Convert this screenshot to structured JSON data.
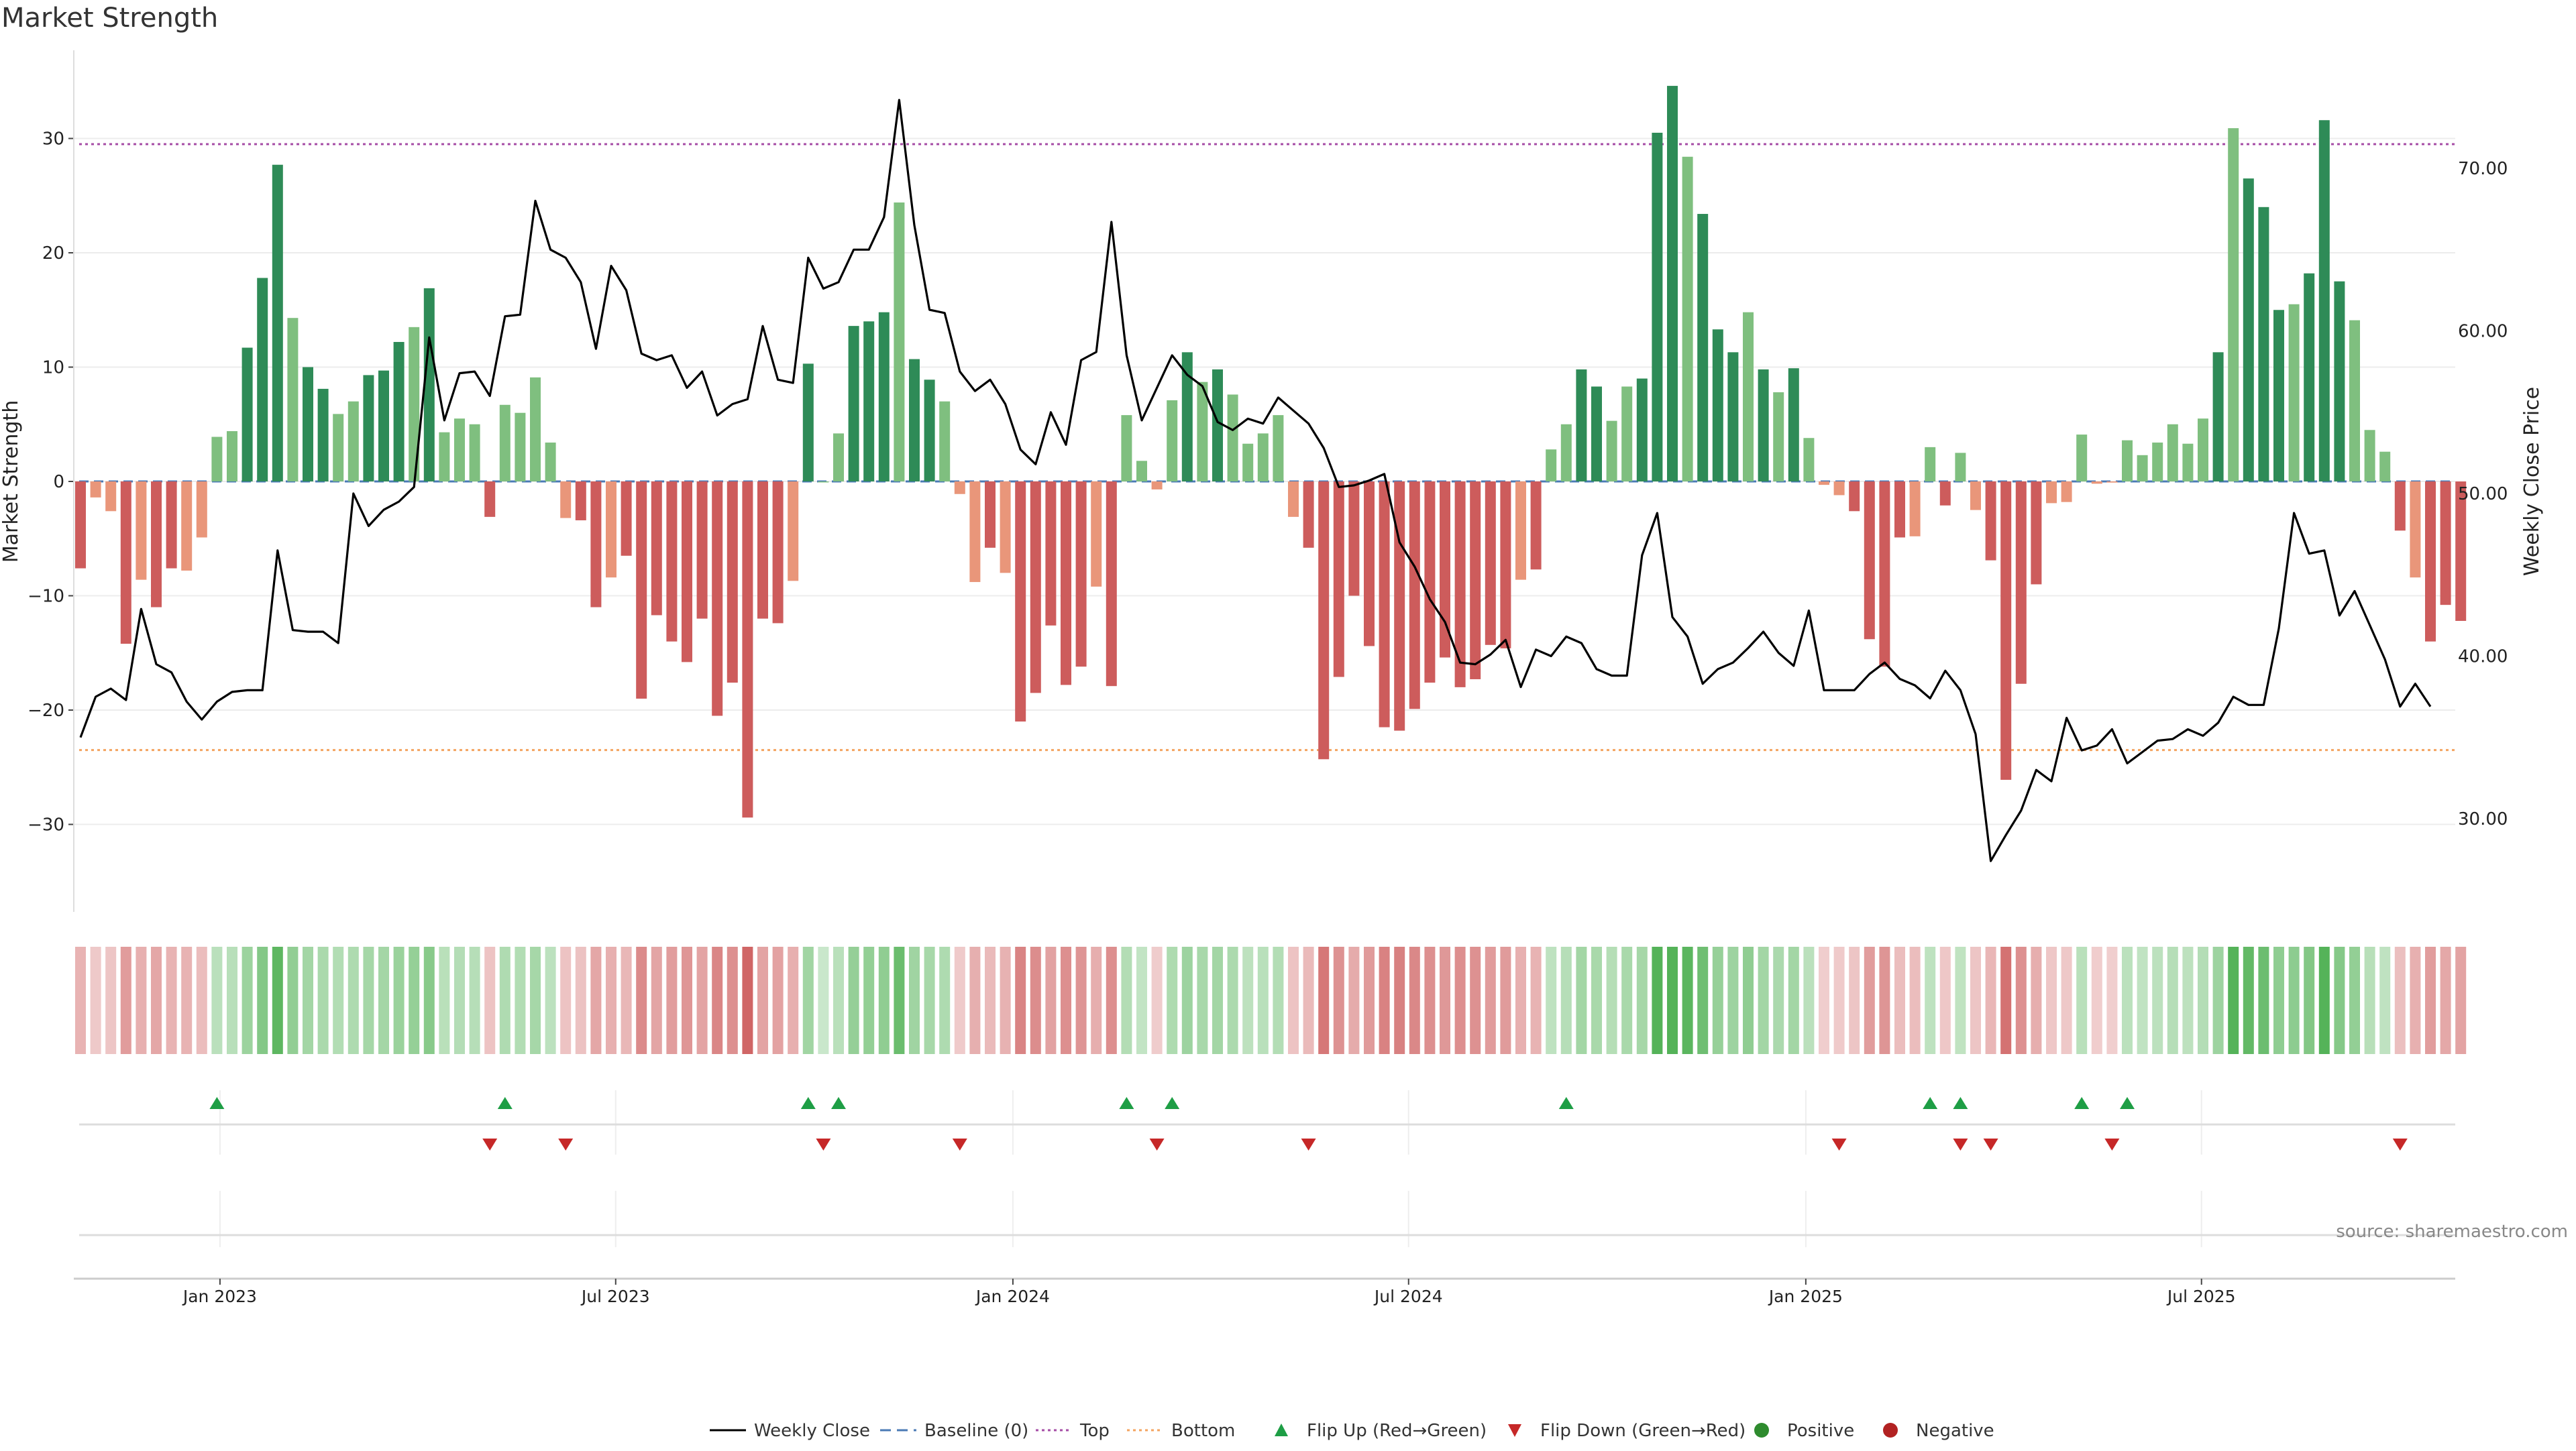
{
  "chart_data": {
    "type": "bar",
    "title": "Market Strength",
    "ylabel": "Market Strength",
    "y2label": "Weekly Close Price",
    "ylim": [
      -37.5,
      37.5
    ],
    "y2lim": [
      25.2,
      75.8
    ],
    "yticks": [
      "30",
      "20",
      "10",
      "0",
      "−10",
      "−20",
      "−30"
    ],
    "yticks_values": [
      30,
      20,
      10,
      0,
      -10,
      -20,
      -30
    ],
    "y2ticks": [
      "70.00",
      "60.00",
      "50.00",
      "40.00",
      "30.00"
    ],
    "y2ticks_values": [
      70,
      60,
      50,
      40,
      30
    ],
    "xticks": [
      "Jan 2023",
      "Jul 2023",
      "Jan 2024",
      "Jul 2024",
      "Jan 2025",
      "Jul 2025"
    ],
    "xticks_week_index": [
      9.2,
      35.3,
      61.5,
      87.6,
      113.8,
      139.9
    ],
    "reference_lines": {
      "top": 29.5,
      "bottom": -23.5,
      "baseline": 0
    },
    "colors": {
      "pos_strong": "#2e8b57",
      "pos_light": "#7fbf7f",
      "neg_strong": "#cd5c5c",
      "neg_light": "#e9967a",
      "close_line": "#000000",
      "top_line": "#a64ca6",
      "bottom_line": "#f4a460",
      "baseline": "#4a7ab5",
      "flip_up": "#1e9e45",
      "flip_down": "#c62828",
      "positive_dot": "#2e8b2e",
      "negative_dot": "#b22222"
    },
    "series": [
      {
        "name": "Market Strength",
        "values": [
          -7.6,
          -1.4,
          -2.6,
          -14.2,
          -8.6,
          -11,
          -7.6,
          -7.8,
          -4.9,
          3.9,
          4.4,
          11.7,
          17.8,
          27.7,
          14.3,
          10,
          8.1,
          5.9,
          7,
          9.3,
          9.7,
          12.2,
          13.5,
          16.9,
          4.3,
          5.5,
          5,
          -3.1,
          6.7,
          6,
          9.1,
          3.4,
          -3.2,
          -3.4,
          -11,
          -8.4,
          -6.5,
          -19,
          -11.7,
          -14,
          -15.8,
          -12,
          -20.5,
          -17.6,
          -29.4,
          -12,
          -12.4,
          -8.7,
          10.3,
          0,
          4.2,
          13.6,
          14,
          14.8,
          24.4,
          10.7,
          8.9,
          7,
          -1.1,
          -8.8,
          -5.8,
          -8,
          -21,
          -18.5,
          -12.6,
          -17.8,
          -16.2,
          -9.2,
          -17.9,
          5.8,
          1.8,
          -0.7,
          7.1,
          11.3,
          8.7,
          9.8,
          7.6,
          3.3,
          4.2,
          5.8,
          -3.1,
          -5.8,
          -24.3,
          -17.1,
          -10,
          -14.4,
          -21.5,
          -21.8,
          -19.9,
          -17.6,
          -15.4,
          -18,
          -17.3,
          -14.3,
          -14.6,
          -8.6,
          -7.7,
          2.8,
          5,
          9.8,
          8.3,
          5.3,
          8.3,
          9,
          30.5,
          34.6,
          28.4,
          23.4,
          13.3,
          11.3,
          14.8,
          9.8,
          7.8,
          9.9,
          3.8,
          -0.3,
          -1.2,
          -2.6,
          -13.8,
          -16.2,
          -4.9,
          -4.8,
          3,
          -2.1,
          2.5,
          -2.5,
          -6.9,
          -26.1,
          -17.7,
          -9,
          -1.9,
          -1.8,
          4.1,
          -0.2,
          -0.1,
          3.6,
          2.3,
          3.4,
          5,
          3.3,
          5.5,
          11.3,
          30.9,
          26.5,
          24,
          15,
          15.5,
          18.2,
          31.6,
          17.5,
          14.1,
          4.5,
          2.6,
          -4.3,
          -8.4,
          -14,
          -10.8,
          -12.2
        ]
      },
      {
        "name": "Weekly Close",
        "values": [
          35,
          37.5,
          38,
          37.3,
          42.9,
          39.5,
          39,
          37.2,
          36.1,
          37.2,
          37.8,
          37.9,
          37.9,
          46.5,
          41.6,
          41.5,
          41.5,
          40.8,
          50,
          48,
          49,
          49.5,
          50.4,
          59.6,
          54.5,
          57.4,
          57.5,
          56,
          60.9,
          61,
          68,
          65,
          64.5,
          63,
          58.9,
          64,
          62.5,
          58.6,
          58.2,
          58.5,
          56.5,
          57.5,
          54.8,
          55.5,
          55.8,
          60.3,
          57,
          56.8,
          64.5,
          62.6,
          63,
          65,
          65,
          67,
          74.2,
          66.5,
          61.3,
          61.1,
          57.5,
          56.3,
          57,
          55.5,
          52.7,
          51.8,
          55,
          53,
          58.2,
          58.7,
          66.7,
          58.5,
          54.5,
          56.5,
          58.5,
          57.3,
          56.6,
          54.4,
          53.9,
          54.6,
          54.3,
          55.9,
          55.1,
          54.3,
          52.8,
          50.4,
          50.5,
          50.8,
          51.2,
          47,
          45.5,
          43.5,
          42.1,
          39.6,
          39.5,
          40.1,
          41,
          38.1,
          40.4,
          40,
          41.2,
          40.8,
          39.2,
          38.8,
          38.8,
          46.2,
          48.8,
          42.4,
          41.2,
          38.3,
          39.2,
          39.6,
          40.5,
          41.5,
          40.2,
          39.4,
          42.8,
          37.9,
          37.9,
          37.9,
          38.9,
          39.6,
          38.6,
          38.2,
          37.4,
          39.1,
          37.9,
          35.2,
          27.4,
          29,
          30.5,
          33,
          32.3,
          36.2,
          34.2,
          34.5,
          35.5,
          33.4,
          34.1,
          34.8,
          34.9,
          35.5,
          35.1,
          35.9,
          37.5,
          37,
          37,
          41.7,
          48.8,
          46.3,
          46.5,
          42.5,
          44,
          41.9,
          39.8,
          36.9,
          38.3,
          36.9
        ]
      }
    ],
    "heatmap": {
      "description": "Strength heat strip, one cell per week, intensity follows Market Strength"
    },
    "flip_up_weeks": [
      9,
      28,
      48,
      50,
      69,
      72,
      98,
      122,
      124,
      132,
      135
    ],
    "flip_down_weeks": [
      27,
      32,
      49,
      58,
      71,
      81,
      116,
      124,
      126,
      134,
      153
    ],
    "legend": [
      {
        "label": "Weekly Close",
        "kind": "line",
        "color": "#000000"
      },
      {
        "label": "Baseline (0)",
        "kind": "dash",
        "color": "#4a7ab5"
      },
      {
        "label": "Top",
        "kind": "dot",
        "color": "#a64ca6"
      },
      {
        "label": "Bottom",
        "kind": "dot",
        "color": "#f4a460"
      },
      {
        "label": "Flip Up (Red→Green)",
        "kind": "tri-up",
        "color": "#1e9e45"
      },
      {
        "label": "Flip Down (Green→Red)",
        "kind": "tri-down",
        "color": "#c62828"
      },
      {
        "label": "Positive",
        "kind": "circle",
        "color": "#2e8b2e"
      },
      {
        "label": "Negative",
        "kind": "circle",
        "color": "#b22222"
      }
    ],
    "source": "source: sharemaestro.com"
  }
}
